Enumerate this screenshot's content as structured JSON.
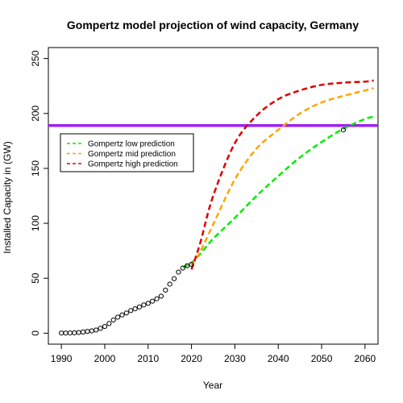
{
  "chart_data": {
    "type": "line",
    "title": "Gompertz model projection of wind capacity, Germany",
    "xlabel": "Year",
    "ylabel": "Installed Capacity in (GW)",
    "xlim": [
      1987,
      2063
    ],
    "ylim": [
      -10,
      260
    ],
    "x_ticks": [
      1990,
      2000,
      2010,
      2020,
      2030,
      2040,
      2050,
      2060
    ],
    "y_ticks": [
      0,
      50,
      100,
      150,
      200,
      250
    ],
    "grid": false,
    "legend_position": "middle-left",
    "hline": {
      "y": 189,
      "color": "#a020f0"
    },
    "observed": {
      "marker": "open-circle",
      "x": [
        1990,
        1991,
        1992,
        1993,
        1994,
        1995,
        1996,
        1997,
        1998,
        1999,
        2000,
        2001,
        2002,
        2003,
        2004,
        2005,
        2006,
        2007,
        2008,
        2009,
        2010,
        2011,
        2012,
        2013,
        2014,
        2015,
        2016,
        2017,
        2018,
        2019,
        2020,
        2055
      ],
      "y": [
        0.1,
        0.1,
        0.2,
        0.3,
        0.6,
        1.1,
        1.6,
        2.1,
        2.9,
        4.4,
        6.1,
        8.8,
        12.0,
        14.6,
        16.6,
        18.4,
        20.6,
        22.2,
        23.9,
        25.7,
        27.2,
        29.1,
        31.3,
        33.7,
        39.2,
        44.6,
        49.6,
        55.6,
        59.3,
        61.4,
        62.6,
        185
      ]
    },
    "series": [
      {
        "name": "Gompertz low prediction",
        "color": "#00ee00",
        "x": [
          2018,
          2020,
          2022,
          2025,
          2030,
          2035,
          2040,
          2045,
          2050,
          2055,
          2060,
          2062
        ],
        "y": [
          60,
          64,
          72,
          86,
          105,
          125,
          143,
          160,
          174,
          186,
          195,
          197
        ]
      },
      {
        "name": "Gompertz mid prediction",
        "color": "#ffa500",
        "x": [
          2020,
          2022,
          2025,
          2030,
          2035,
          2040,
          2045,
          2050,
          2055,
          2060,
          2062
        ],
        "y": [
          62,
          74,
          99,
          140,
          168,
          185,
          200,
          210,
          216,
          221,
          223
        ]
      },
      {
        "name": "Gompertz high prediction",
        "color": "#dd0000",
        "x": [
          2020,
          2022,
          2025,
          2030,
          2035,
          2040,
          2045,
          2050,
          2055,
          2060,
          2062
        ],
        "y": [
          58,
          82,
          125,
          173,
          198,
          213,
          221,
          226,
          228,
          229,
          230
        ]
      }
    ]
  }
}
